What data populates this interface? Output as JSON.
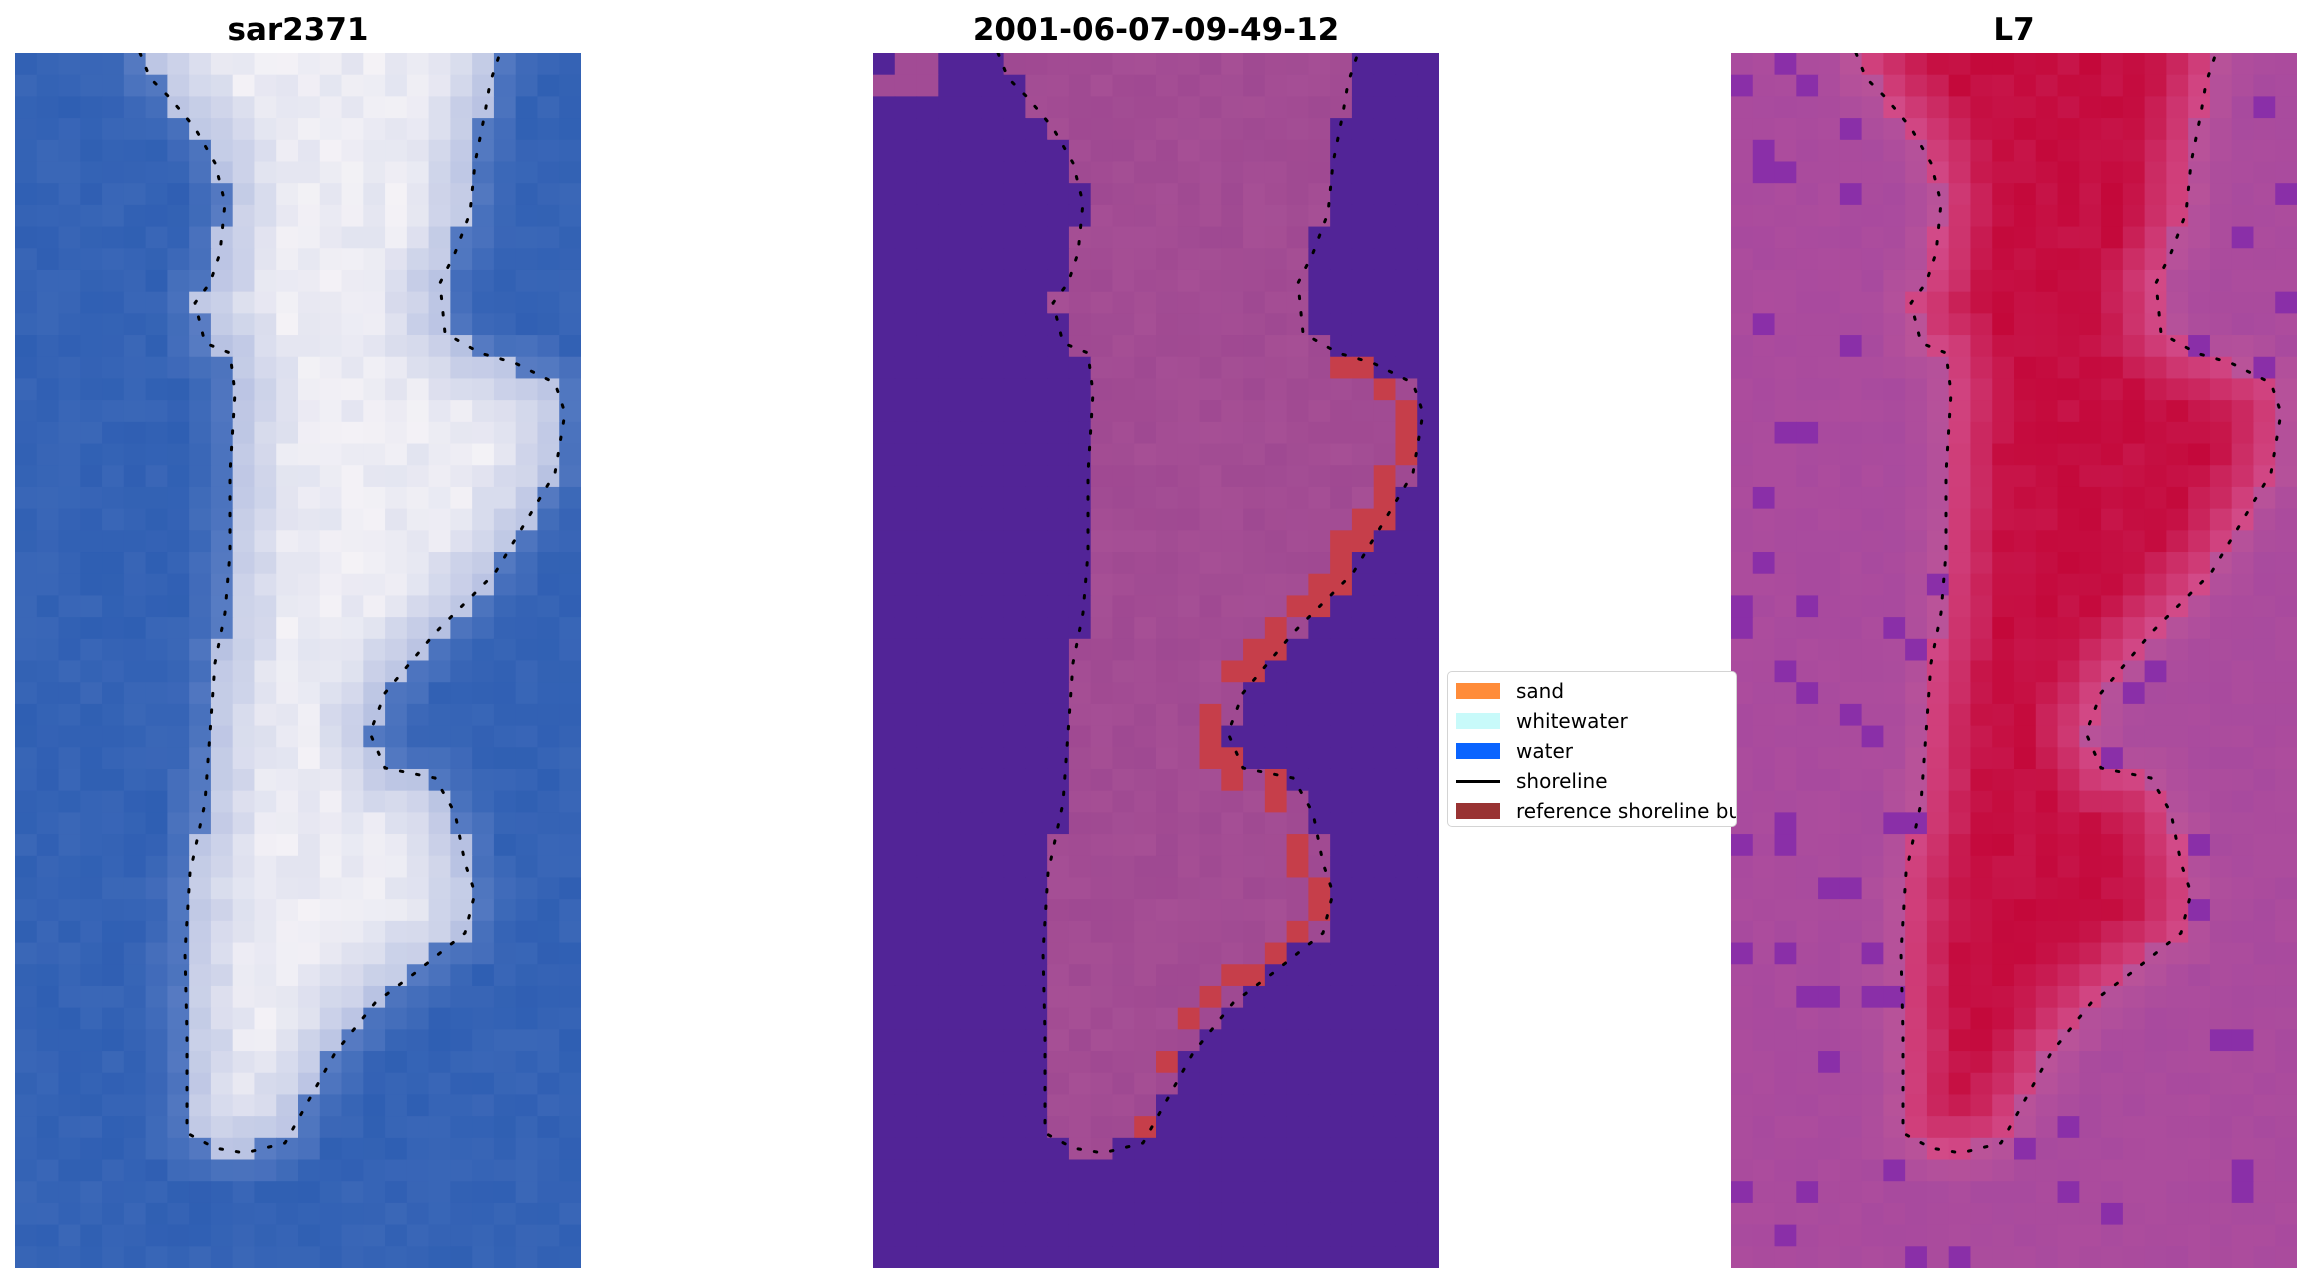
{
  "panels": [
    {
      "title": "sar2371",
      "kind": "rgb"
    },
    {
      "title": "2001-06-07-09-49-12",
      "kind": "classified"
    },
    {
      "title": "L7",
      "kind": "ndwi"
    }
  ],
  "legend": {
    "items": [
      {
        "label": "sand",
        "color": "#ff8c3a",
        "kind": "patch"
      },
      {
        "label": "whitewater",
        "color": "#c8fafa",
        "kind": "patch"
      },
      {
        "label": "water",
        "color": "#0a64ff",
        "kind": "patch"
      },
      {
        "label": "shoreline",
        "color": "#000000",
        "kind": "line"
      },
      {
        "label": "reference shoreline buffer",
        "color": "#993333",
        "kind": "patch"
      }
    ]
  },
  "colors": {
    "rgb_water": "#2f5fb3",
    "rgb_land": "#c9d0ea",
    "class_background": "#522497",
    "class_land": "#9c4690",
    "class_buffer": "#c63e4a",
    "ndwi_background": "#a84a9e",
    "ndwi_land": "#c4083a"
  }
}
